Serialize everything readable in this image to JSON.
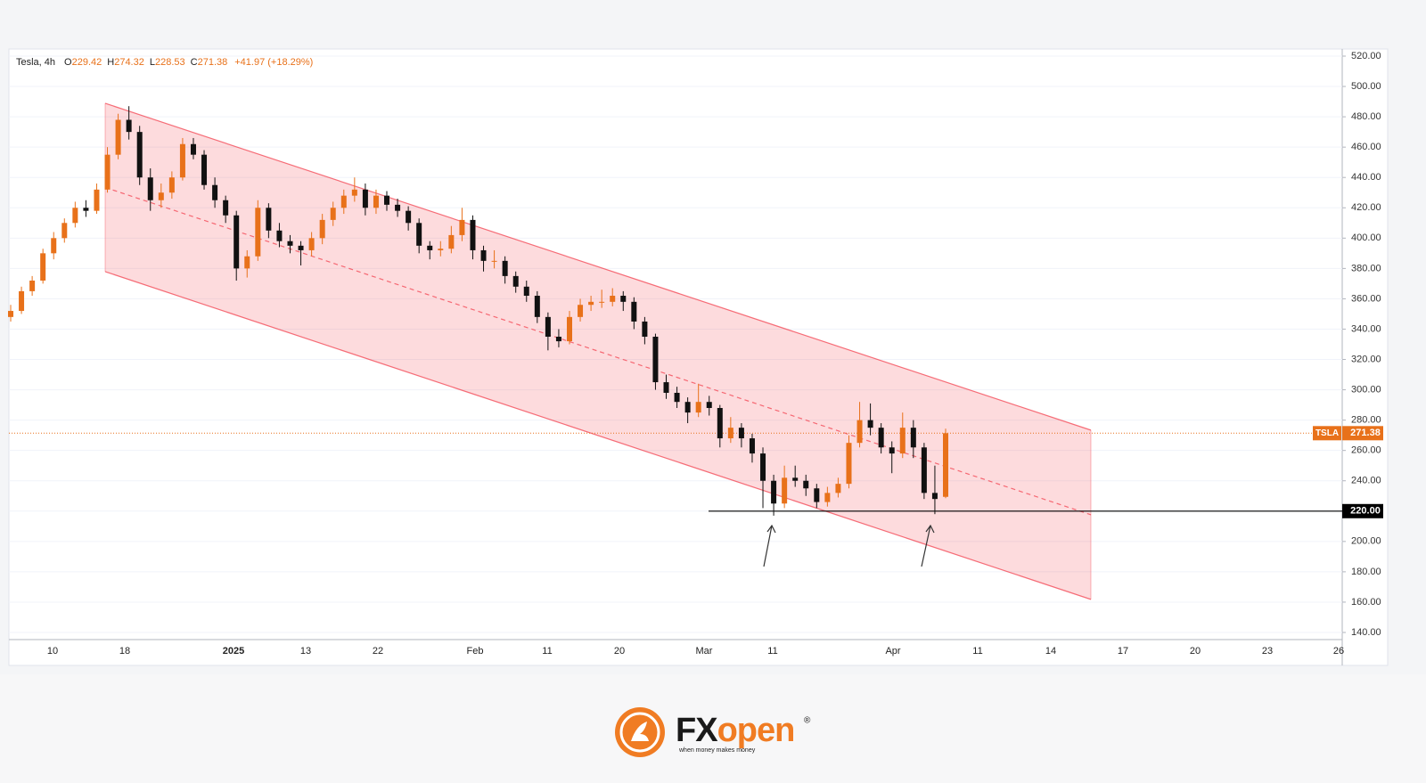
{
  "chart_data": {
    "type": "candlestick",
    "symbol_title": "Tesla, 4h",
    "ohlc": [
      {
        "key": "O",
        "value": 229.42
      },
      {
        "key": "H",
        "value": 274.32
      },
      {
        "key": "L",
        "value": 228.53
      },
      {
        "key": "C",
        "value": 271.38
      }
    ],
    "change": "+41.97 (+18.29%)",
    "up_color": "#e8711a",
    "down_color": "#111111",
    "candles": [
      [
        348,
        356,
        345,
        352
      ],
      [
        352,
        368,
        350,
        365
      ],
      [
        365,
        375,
        362,
        372
      ],
      [
        372,
        393,
        370,
        390
      ],
      [
        390,
        404,
        386,
        400
      ],
      [
        400,
        413,
        397,
        410
      ],
      [
        410,
        424,
        407,
        420
      ],
      [
        420,
        425,
        414,
        418
      ],
      [
        418,
        436,
        416,
        432
      ],
      [
        432,
        460,
        430,
        455
      ],
      [
        455,
        482,
        452,
        478
      ],
      [
        478,
        487,
        465,
        470
      ],
      [
        470,
        474,
        435,
        440
      ],
      [
        440,
        446,
        418,
        425
      ],
      [
        425,
        436,
        420,
        430
      ],
      [
        430,
        444,
        426,
        440
      ],
      [
        440,
        466,
        438,
        462
      ],
      [
        462,
        466,
        452,
        455
      ],
      [
        455,
        458,
        432,
        435
      ],
      [
        435,
        440,
        420,
        425
      ],
      [
        425,
        428,
        410,
        415
      ],
      [
        415,
        418,
        372,
        380
      ],
      [
        380,
        392,
        374,
        388
      ],
      [
        388,
        425,
        385,
        420
      ],
      [
        420,
        423,
        400,
        405
      ],
      [
        405,
        410,
        394,
        398
      ],
      [
        398,
        402,
        390,
        395
      ],
      [
        395,
        398,
        382,
        392
      ],
      [
        392,
        404,
        388,
        400
      ],
      [
        400,
        416,
        396,
        412
      ],
      [
        412,
        424,
        408,
        420
      ],
      [
        420,
        432,
        416,
        428
      ],
      [
        428,
        440,
        424,
        432
      ],
      [
        432,
        436,
        415,
        420
      ],
      [
        420,
        432,
        416,
        428
      ],
      [
        428,
        431,
        418,
        422
      ],
      [
        422,
        426,
        414,
        418
      ],
      [
        418,
        421,
        405,
        410
      ],
      [
        410,
        413,
        390,
        395
      ],
      [
        395,
        398,
        386,
        392
      ],
      [
        392,
        398,
        388,
        393
      ],
      [
        393,
        408,
        390,
        402
      ],
      [
        402,
        420,
        398,
        412
      ],
      [
        412,
        415,
        386,
        392
      ],
      [
        392,
        395,
        378,
        385
      ],
      [
        385,
        392,
        380,
        385
      ],
      [
        385,
        388,
        370,
        375
      ],
      [
        375,
        378,
        364,
        368
      ],
      [
        368,
        372,
        358,
        362
      ],
      [
        362,
        365,
        344,
        348
      ],
      [
        348,
        351,
        326,
        335
      ],
      [
        335,
        340,
        328,
        332
      ],
      [
        332,
        352,
        330,
        348
      ],
      [
        348,
        360,
        345,
        356
      ],
      [
        356,
        362,
        352,
        358
      ],
      [
        358,
        366,
        354,
        358
      ],
      [
        358,
        367,
        355,
        362
      ],
      [
        362,
        365,
        352,
        358
      ],
      [
        358,
        361,
        340,
        345
      ],
      [
        345,
        348,
        330,
        335
      ],
      [
        335,
        337,
        300,
        305
      ],
      [
        305,
        310,
        294,
        298
      ],
      [
        298,
        302,
        288,
        292
      ],
      [
        292,
        295,
        278,
        285
      ],
      [
        285,
        304,
        282,
        292
      ],
      [
        292,
        296,
        283,
        288
      ],
      [
        288,
        290,
        262,
        268
      ],
      [
        268,
        282,
        265,
        275
      ],
      [
        275,
        278,
        262,
        268
      ],
      [
        268,
        271,
        252,
        258
      ],
      [
        258,
        262,
        222,
        240
      ],
      [
        240,
        244,
        217,
        225
      ],
      [
        225,
        250,
        222,
        242
      ],
      [
        242,
        250,
        236,
        240
      ],
      [
        240,
        244,
        230,
        235
      ],
      [
        235,
        238,
        222,
        226
      ],
      [
        226,
        236,
        223,
        232
      ],
      [
        232,
        242,
        229,
        238
      ],
      [
        238,
        270,
        235,
        265
      ],
      [
        265,
        292,
        262,
        280
      ],
      [
        280,
        291,
        270,
        275
      ],
      [
        275,
        278,
        258,
        262
      ],
      [
        262,
        266,
        245,
        258
      ],
      [
        258,
        285,
        255,
        275
      ],
      [
        275,
        280,
        255,
        262
      ],
      [
        262,
        265,
        228,
        232
      ],
      [
        232,
        250,
        218,
        228
      ],
      [
        229.42,
        274.32,
        228.53,
        271.38
      ]
    ],
    "channel": {
      "upper": [
        488.9,
        273.4
      ],
      "middle": [
        433.4,
        217.6
      ],
      "lower": [
        377.9,
        161.8
      ],
      "color": "#f23645"
    },
    "level": {
      "value": 220,
      "label": "220.00"
    },
    "last_price": {
      "name": "TSLA",
      "value": 271.38
    },
    "ylim": [
      135.3,
      524.7
    ],
    "yticks": [
      {
        "value": 140,
        "label": "140.00"
      },
      {
        "value": 160,
        "label": "160.00"
      },
      {
        "value": 180,
        "label": "180.00"
      },
      {
        "value": 200,
        "label": "200.00"
      },
      {
        "value": 220,
        "label": "220.00"
      },
      {
        "value": 240,
        "label": "240.00"
      },
      {
        "value": 260,
        "label": "260.00"
      },
      {
        "value": 280,
        "label": "280.00"
      },
      {
        "value": 300,
        "label": "300.00"
      },
      {
        "value": 320,
        "label": "320.00"
      },
      {
        "value": 340,
        "label": "340.00"
      },
      {
        "value": 360,
        "label": "360.00"
      },
      {
        "value": 380,
        "label": "380.00"
      },
      {
        "value": 400,
        "label": "400.00"
      },
      {
        "value": 420,
        "label": "420.00"
      },
      {
        "value": 440,
        "label": "440.00"
      },
      {
        "value": 460,
        "label": "460.00"
      },
      {
        "value": 480,
        "label": "480.00"
      },
      {
        "value": 500,
        "label": "500.00"
      },
      {
        "value": 520,
        "label": "520.00"
      }
    ],
    "x_ticks": [
      "10",
      "18",
      "2025",
      "13",
      "22",
      "Feb",
      "11",
      "20",
      "Mar",
      "11",
      "Apr",
      "11",
      "14",
      "17",
      "20",
      "23",
      "26"
    ],
    "grid": true
  },
  "footer": {
    "brand_prefix": "FX",
    "brand_suffix": "open",
    "registered": "®",
    "tagline": "when money makes money"
  }
}
